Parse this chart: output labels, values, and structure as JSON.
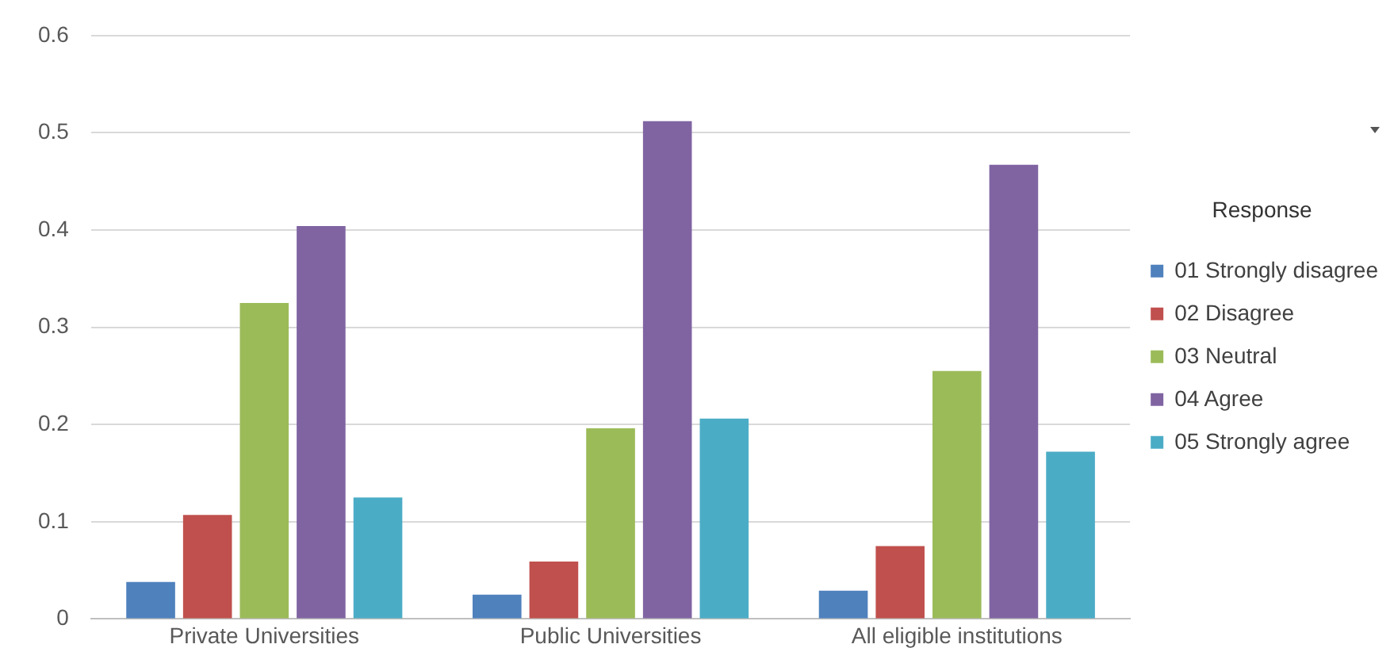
{
  "chart_data": {
    "type": "bar",
    "categories": [
      "Private Universities",
      "Public Universities",
      "All eligible institutions"
    ],
    "series": [
      {
        "name": "01 Strongly disagree",
        "color": "#4f81bd",
        "values": [
          0.038,
          0.025,
          0.029
        ]
      },
      {
        "name": "02 Disagree",
        "color": "#c0504d",
        "values": [
          0.107,
          0.059,
          0.075
        ]
      },
      {
        "name": "03 Neutral",
        "color": "#9bbb59",
        "values": [
          0.325,
          0.196,
          0.255
        ]
      },
      {
        "name": "04 Agree",
        "color": "#8064a2",
        "values": [
          0.404,
          0.512,
          0.467
        ]
      },
      {
        "name": "05 Strongly agree",
        "color": "#4bacc6",
        "values": [
          0.125,
          0.206,
          0.172
        ]
      }
    ],
    "legend_title": "Response",
    "legend": "right",
    "ylim": [
      0,
      0.6
    ],
    "yticks": [
      0,
      0.1,
      0.2,
      0.3,
      0.4,
      0.5,
      0.6
    ],
    "grid": "y"
  }
}
